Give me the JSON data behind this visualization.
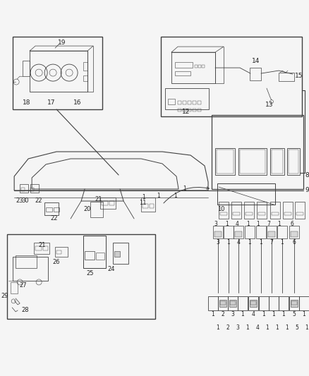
{
  "bg_color": "#f5f5f5",
  "lc": "#404040",
  "fig_width": 4.38,
  "fig_height": 5.33,
  "dpi": 100
}
